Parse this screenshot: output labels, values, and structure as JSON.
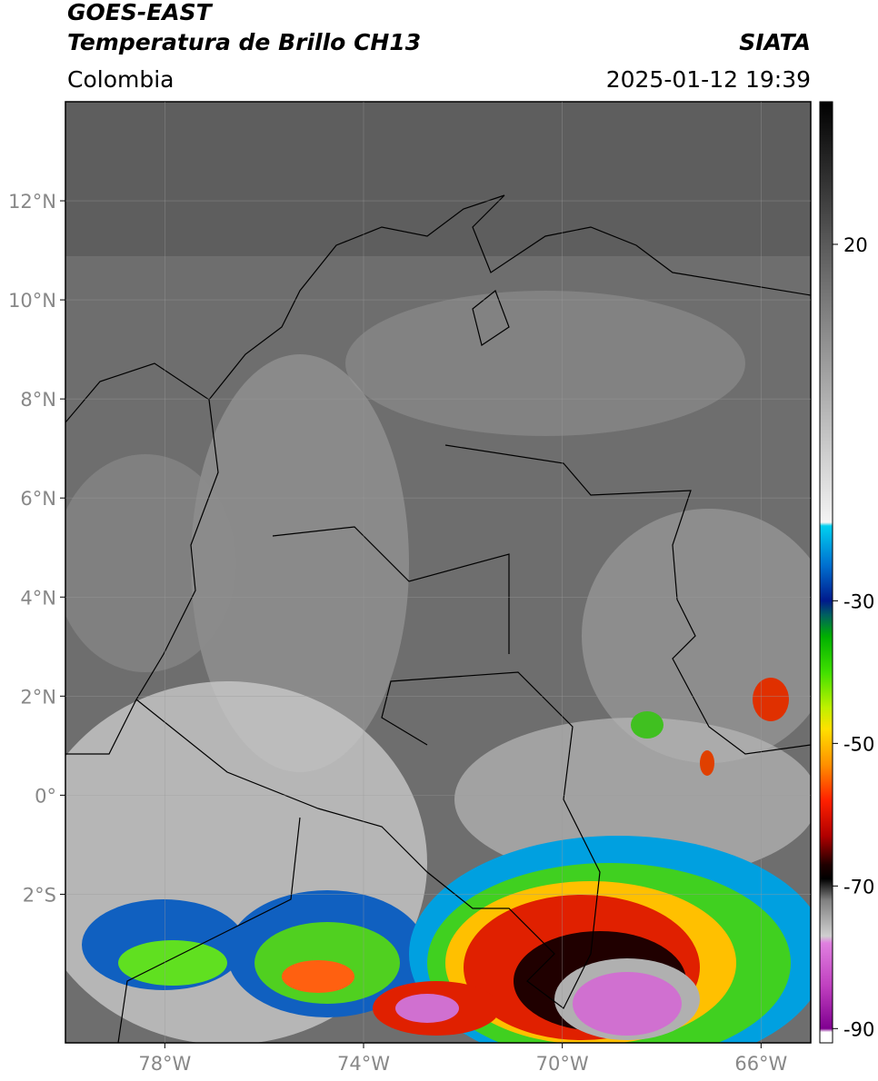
{
  "header": {
    "title_line1": "GOES-EAST",
    "title_line2": "Temperatura de Brillo CH13",
    "region": "Colombia",
    "source": "SIATA",
    "datetime": "2025-01-12 19:39"
  },
  "map": {
    "xlim": [
      -80,
      -65
    ],
    "ylim": [
      -5,
      14
    ],
    "lon_ticks": [
      {
        "value": -78,
        "label": "78°W"
      },
      {
        "value": -74,
        "label": "74°W"
      },
      {
        "value": -70,
        "label": "70°W"
      },
      {
        "value": -66,
        "label": "66°W"
      }
    ],
    "lat_ticks": [
      {
        "value": 12,
        "label": "12°N"
      },
      {
        "value": 10,
        "label": "10°N"
      },
      {
        "value": 8,
        "label": "8°N"
      },
      {
        "value": 6,
        "label": "6°N"
      },
      {
        "value": 4,
        "label": "4°N"
      },
      {
        "value": 2,
        "label": "2°N"
      },
      {
        "value": 0,
        "label": "0°"
      },
      {
        "value": -2,
        "label": "2°S"
      }
    ],
    "grid": true
  },
  "colorbar": {
    "lim": [
      -92,
      40
    ],
    "ticks": [
      20,
      -30,
      -50,
      -70,
      -90
    ],
    "stops": [
      {
        "value": 40,
        "color": "#000000"
      },
      {
        "value": 20,
        "color": "#5a5a5a"
      },
      {
        "value": -19,
        "color": "#f4f4f4"
      },
      {
        "value": -19.5,
        "color": "#00d0f0"
      },
      {
        "value": -25,
        "color": "#0070d0"
      },
      {
        "value": -30,
        "color": "#001a8c"
      },
      {
        "value": -32,
        "color": "#006060"
      },
      {
        "value": -35,
        "color": "#00b000"
      },
      {
        "value": -40,
        "color": "#40e000"
      },
      {
        "value": -45,
        "color": "#c0f000"
      },
      {
        "value": -48,
        "color": "#ffe000"
      },
      {
        "value": -53,
        "color": "#ff9000"
      },
      {
        "value": -58,
        "color": "#ff2000"
      },
      {
        "value": -63,
        "color": "#b00000"
      },
      {
        "value": -67,
        "color": "#200000"
      },
      {
        "value": -69,
        "color": "#000000"
      },
      {
        "value": -72,
        "color": "#808080"
      },
      {
        "value": -77,
        "color": "#d0d0d0"
      },
      {
        "value": -78,
        "color": "#e080e0"
      },
      {
        "value": -84,
        "color": "#c040c0"
      },
      {
        "value": -90,
        "color": "#800090"
      },
      {
        "value": -90.5,
        "color": "#ffffff"
      },
      {
        "value": -92,
        "color": "#ffffff"
      }
    ]
  }
}
